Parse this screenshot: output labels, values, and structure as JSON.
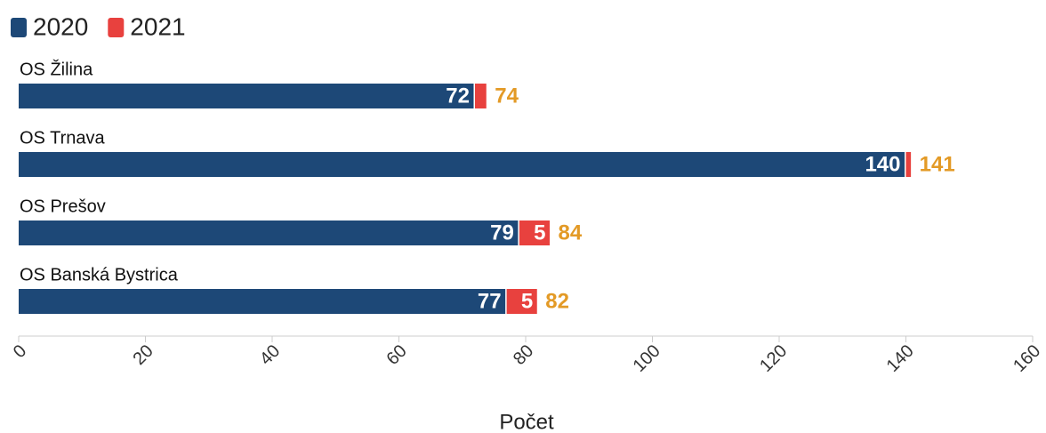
{
  "chart_data": {
    "type": "stacked-bar-horizontal",
    "categories": [
      "OS Žilina",
      "OS Trnava",
      "OS Prešov",
      "OS Banská Bystrica"
    ],
    "series": [
      {
        "name": "2020",
        "color": "#1d4877",
        "values": [
          72,
          140,
          79,
          77
        ]
      },
      {
        "name": "2021",
        "color": "#e8413e",
        "values": [
          2,
          1,
          5,
          5
        ]
      }
    ],
    "totals": [
      74,
      141,
      84,
      82
    ],
    "total_color": "#e39a26",
    "x_label": "Počet",
    "xlim": [
      0,
      160
    ],
    "xticks": [
      0,
      20,
      40,
      60,
      80,
      100,
      120,
      140,
      160
    ]
  }
}
